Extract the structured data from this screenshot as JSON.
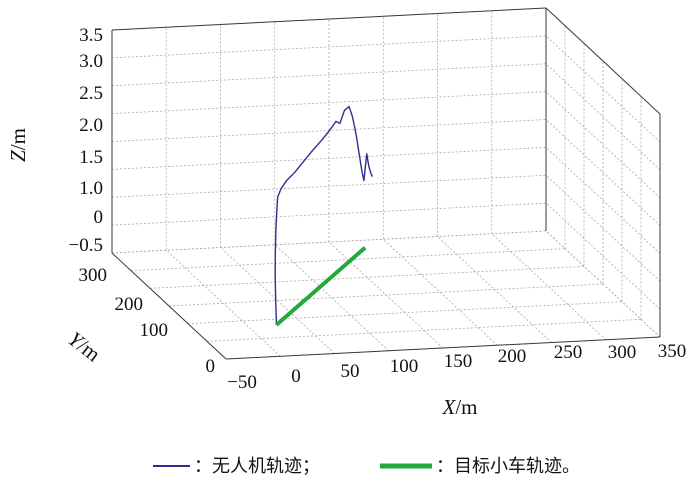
{
  "chart_data": {
    "type": "line",
    "projection": "3d",
    "xlabel": {
      "var": "X",
      "unit": "/m"
    },
    "ylabel": {
      "var": "Y",
      "unit": "/m"
    },
    "zlabel": {
      "var": "Z",
      "unit": "/m"
    },
    "xlim": [
      -50,
      350
    ],
    "ylim": [
      0,
      300
    ],
    "zlim": [
      -0.5,
      3.5
    ],
    "x_ticks": [
      "−50",
      "0",
      "50",
      "100",
      "150",
      "200",
      "250",
      "300",
      "350"
    ],
    "y_ticks": [
      "0",
      "100",
      "200",
      "300"
    ],
    "z_ticks": [
      "−0.5",
      "0",
      "1.0",
      "1.5",
      "2.0",
      "2.5",
      "3.0",
      "3.5"
    ],
    "grid": true,
    "legend_position": "bottom",
    "series": [
      {
        "name": "：无人机轨迹；",
        "color": "#2e2e8f",
        "points": [
          [
            0,
            10,
            0.0
          ],
          [
            1,
            15,
            0.45
          ],
          [
            3,
            22,
            0.85
          ],
          [
            6,
            30,
            1.2
          ],
          [
            10,
            40,
            1.5
          ],
          [
            15,
            52,
            1.75
          ],
          [
            20,
            64,
            1.93
          ],
          [
            28,
            78,
            1.98
          ],
          [
            38,
            92,
            2.03
          ],
          [
            50,
            105,
            2.08
          ],
          [
            62,
            117,
            2.18
          ],
          [
            75,
            129,
            2.3
          ],
          [
            88,
            140,
            2.42
          ],
          [
            98,
            149,
            2.52
          ],
          [
            106,
            156,
            2.62
          ],
          [
            111,
            160,
            2.55
          ],
          [
            117,
            165,
            2.75
          ],
          [
            123,
            170,
            2.78
          ],
          [
            128,
            175,
            2.55
          ],
          [
            133,
            180,
            2.2
          ],
          [
            137,
            184,
            1.85
          ],
          [
            141,
            188,
            1.5
          ],
          [
            144,
            191,
            1.3
          ],
          [
            148,
            195,
            1.75
          ],
          [
            151,
            198,
            1.5
          ],
          [
            154,
            201,
            1.35
          ],
          [
            156,
            203,
            1.28
          ]
        ]
      },
      {
        "name": "：目标小车轨迹。",
        "color": "#22aa3c",
        "points": [
          [
            0,
            10,
            0.0
          ],
          [
            150,
            205,
            0.0
          ]
        ]
      }
    ]
  }
}
